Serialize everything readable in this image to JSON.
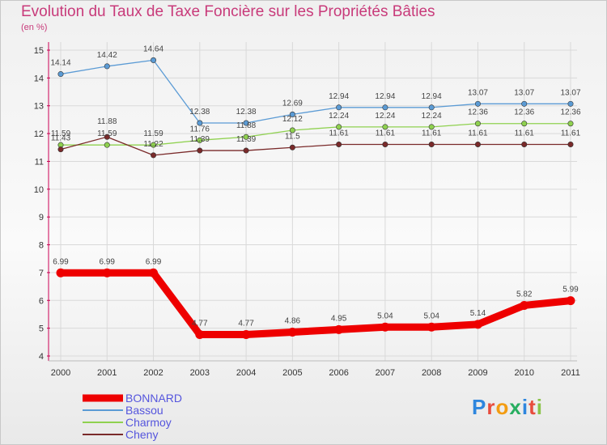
{
  "header": {
    "title": "Evolution du Taux de Taxe Foncière sur les Propriétés Bâties",
    "unit": "(en %)"
  },
  "logo": {
    "text": "Proxiti"
  },
  "chart_data": {
    "type": "line",
    "title": "Evolution du Taux de Taxe Foncière sur les Propriétés Bâties",
    "ylabel": "(en %)",
    "xlabel": "",
    "x": [
      "2000",
      "2001",
      "2002",
      "2003",
      "2004",
      "2005",
      "2006",
      "2007",
      "2008",
      "2009",
      "2010",
      "2011"
    ],
    "ylim": [
      4,
      15
    ],
    "yticks": [
      4,
      5,
      6,
      7,
      8,
      9,
      10,
      11,
      12,
      13,
      14,
      15
    ],
    "grid": true,
    "legend_position": "bottom-left",
    "series": [
      {
        "name": "BONNARD",
        "color": "#ee0000",
        "values": [
          6.99,
          6.99,
          6.99,
          4.77,
          4.77,
          4.86,
          4.95,
          5.04,
          5.04,
          5.14,
          5.82,
          5.99
        ]
      },
      {
        "name": "Bassou",
        "color": "#5b9bd5",
        "values": [
          14.14,
          14.42,
          14.64,
          12.38,
          12.38,
          12.69,
          12.94,
          12.94,
          12.94,
          13.07,
          13.07,
          13.07
        ]
      },
      {
        "name": "Charmoy",
        "color": "#8fd14f",
        "values": [
          11.59,
          11.59,
          11.59,
          11.76,
          11.88,
          12.12,
          12.24,
          12.24,
          12.24,
          12.36,
          12.36,
          12.36
        ]
      },
      {
        "name": "Cheny",
        "color": "#7a2a2a",
        "values": [
          11.43,
          11.88,
          11.22,
          11.39,
          11.39,
          11.5,
          11.61,
          11.61,
          11.61,
          11.61,
          11.61,
          11.61
        ]
      }
    ]
  }
}
